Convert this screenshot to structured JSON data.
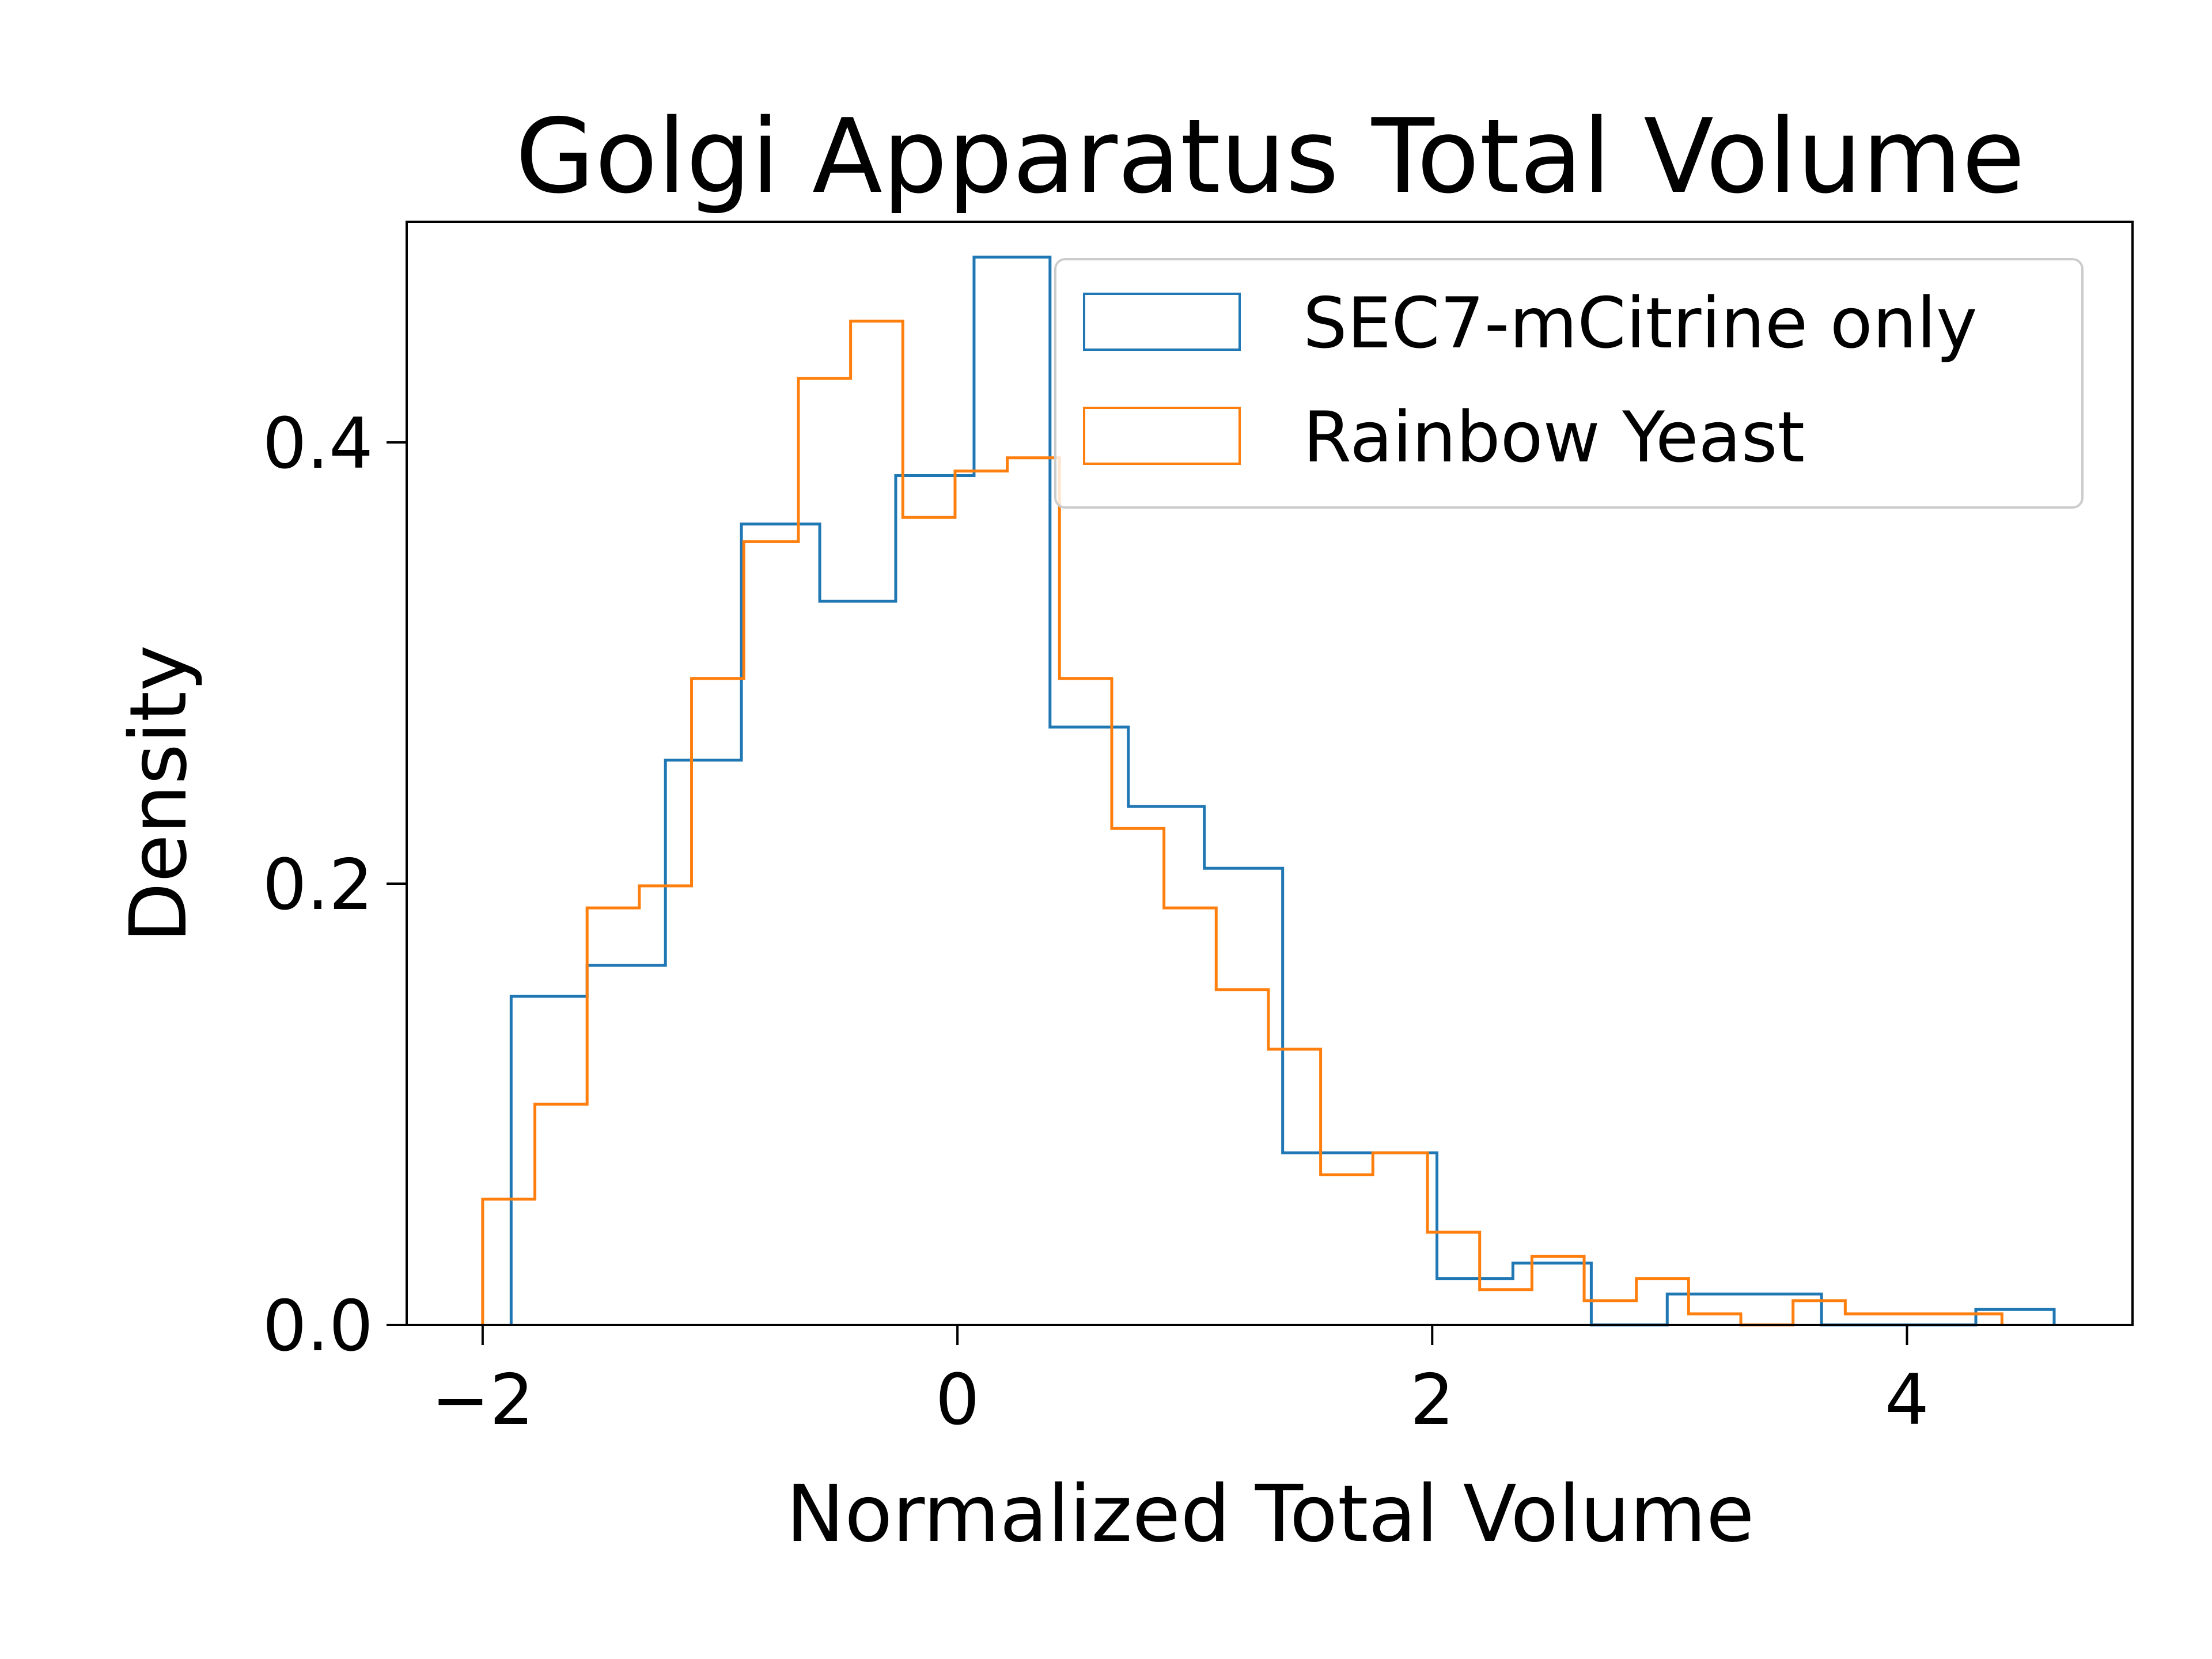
{
  "chart_data": {
    "type": "histogram-step",
    "title": "Golgi Apparatus Total Volume",
    "xlabel": "Normalized Total Volume",
    "ylabel": "Density",
    "xlim": [
      -2.32,
      4.95
    ],
    "ylim": [
      0.0,
      0.5
    ],
    "xticks": [
      -2,
      0,
      2,
      4
    ],
    "xtick_labels": [
      "−2",
      "0",
      "2",
      "4"
    ],
    "yticks": [
      0.0,
      0.2,
      0.4
    ],
    "ytick_labels": [
      "0.0",
      "0.2",
      "0.4"
    ],
    "legend_position": "upper right",
    "series": [
      {
        "name": "SEC7-mCitrine only",
        "color": "#1f77b4",
        "edges": [
          -1.88,
          -1.56,
          -1.23,
          -0.91,
          -0.58,
          -0.26,
          0.07,
          0.39,
          0.72,
          1.04,
          1.37,
          1.69,
          2.02,
          2.34,
          2.67,
          2.99,
          3.32,
          3.64,
          3.97,
          4.29,
          4.62
        ],
        "values": [
          0.149,
          0.163,
          0.256,
          0.363,
          0.328,
          0.385,
          0.484,
          0.271,
          0.235,
          0.207,
          0.078,
          0.078,
          0.021,
          0.028,
          0.0,
          0.014,
          0.014,
          0.0,
          0.0,
          0.007
        ]
      },
      {
        "name": "Rainbow Yeast",
        "color": "#ff7f0e",
        "edges": [
          -2.0,
          -1.78,
          -1.56,
          -1.34,
          -1.12,
          -0.9,
          -0.67,
          -0.45,
          -0.23,
          -0.01,
          0.21,
          0.43,
          0.65,
          0.87,
          1.09,
          1.31,
          1.53,
          1.75,
          1.98,
          2.2,
          2.42,
          2.64,
          2.86,
          3.08,
          3.3,
          3.52,
          3.74,
          3.96,
          4.18,
          4.4
        ],
        "values": [
          0.057,
          0.1,
          0.189,
          0.199,
          0.293,
          0.355,
          0.429,
          0.455,
          0.366,
          0.387,
          0.393,
          0.293,
          0.225,
          0.189,
          0.152,
          0.125,
          0.068,
          0.078,
          0.042,
          0.016,
          0.031,
          0.011,
          0.021,
          0.005,
          0.0,
          0.011,
          0.005,
          0.005,
          0.005
        ]
      }
    ]
  }
}
